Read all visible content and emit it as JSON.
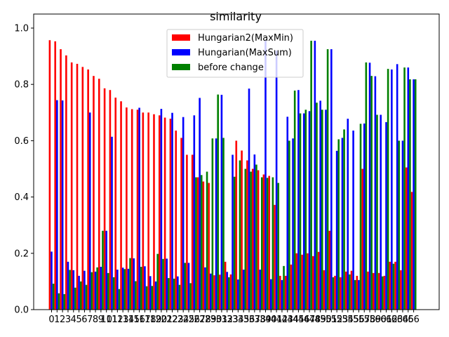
{
  "chart_data": {
    "type": "bar",
    "title": "similarity",
    "xlabel": "",
    "ylabel": "",
    "ylim": [
      0,
      1.0
    ],
    "yticks": [
      "0.0",
      "0.2",
      "0.4",
      "0.6",
      "0.8",
      "1.0"
    ],
    "categories": [
      "0",
      "1",
      "2",
      "3",
      "4",
      "5",
      "6",
      "7",
      "8",
      "9",
      "10",
      "11",
      "12",
      "13",
      "14",
      "15",
      "16",
      "17",
      "18",
      "19",
      "20",
      "21",
      "22",
      "23",
      "24",
      "25",
      "26",
      "27",
      "28",
      "29",
      "30",
      "31",
      "32",
      "33",
      "34",
      "35",
      "36",
      "37",
      "38",
      "39",
      "40",
      "41",
      "42",
      "43",
      "44",
      "45",
      "46",
      "47",
      "48",
      "49",
      "50",
      "51",
      "52",
      "53",
      "54",
      "55",
      "56",
      "57",
      "58",
      "59",
      "60",
      "61",
      "62",
      "63",
      "64",
      "65",
      "66"
    ],
    "legend_position": "top-center",
    "series": [
      {
        "name": "Hungarian2(MaxMin)",
        "color": "#ff0000",
        "values": [
          0.957,
          0.953,
          0.925,
          0.903,
          0.878,
          0.873,
          0.862,
          0.853,
          0.83,
          0.82,
          0.786,
          0.78,
          0.753,
          0.74,
          0.718,
          0.712,
          0.71,
          0.7,
          0.7,
          0.694,
          0.69,
          0.682,
          0.678,
          0.636,
          0.61,
          0.55,
          0.55,
          0.47,
          0.455,
          0.45,
          0.122,
          0.124,
          0.17,
          0.125,
          0.6,
          0.565,
          0.53,
          0.5,
          0.495,
          0.48,
          0.475,
          0.372,
          0.12,
          0.12,
          0.16,
          0.2,
          0.195,
          0.2,
          0.19,
          0.205,
          0.14,
          0.28,
          0.12,
          0.115,
          0.135,
          0.138,
          0.12,
          0.5,
          0.135,
          0.13,
          0.13,
          0.12,
          0.17,
          0.17,
          0.14,
          0.505,
          0.418
        ]
      },
      {
        "name": "Hungarian(MaxSum)",
        "color": "#0000ff",
        "values": [
          0.206,
          0.744,
          0.743,
          0.17,
          0.14,
          0.12,
          0.138,
          0.7,
          0.135,
          0.152,
          0.28,
          0.614,
          0.142,
          0.149,
          0.145,
          0.182,
          0.717,
          0.154,
          0.119,
          0.1,
          0.713,
          0.181,
          0.699,
          0.118,
          0.684,
          0.166,
          0.69,
          0.752,
          0.15,
          0.128,
          0.608,
          0.763,
          0.134,
          0.55,
          0.107,
          0.142,
          0.785,
          0.551,
          0.142,
          0.955,
          0.108,
          0.92,
          0.105,
          0.685,
          0.608,
          0.78,
          0.697,
          0.705,
          0.955,
          0.742,
          0.71,
          0.925,
          0.564,
          0.61,
          0.678,
          0.636,
          0.105,
          0.661,
          0.877,
          0.829,
          0.692,
          0.666,
          0.853,
          0.872,
          0.6,
          0.86,
          0.818
        ]
      },
      {
        "name": "before change",
        "color": "#008000",
        "values": [
          0.092,
          0.058,
          0.055,
          0.141,
          0.078,
          0.1,
          0.088,
          0.133,
          0.15,
          0.28,
          0.13,
          0.115,
          0.073,
          0.144,
          0.183,
          0.101,
          0.152,
          0.083,
          0.084,
          0.198,
          0.18,
          0.112,
          0.11,
          0.088,
          0.166,
          0.094,
          0.47,
          0.478,
          0.49,
          0.608,
          0.764,
          0.61,
          0.115,
          0.472,
          0.53,
          0.5,
          0.49,
          0.515,
          0.47,
          0.468,
          0.47,
          0.45,
          0.155,
          0.6,
          0.778,
          0.697,
          0.71,
          0.955,
          0.735,
          0.71,
          0.925,
          0.115,
          0.605,
          0.64,
          0.125,
          0.105,
          0.66,
          0.878,
          0.83,
          0.692,
          0.118,
          0.855,
          0.163,
          0.6,
          0.86,
          0.818,
          0.818
        ]
      }
    ]
  }
}
